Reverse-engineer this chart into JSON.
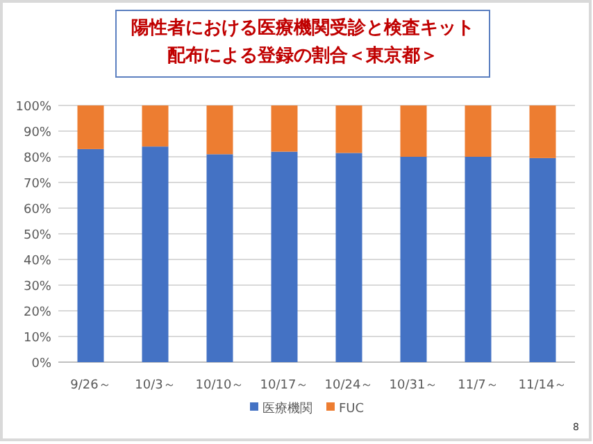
{
  "chart_data": {
    "type": "bar",
    "stacked": true,
    "title": "陽性者における医療機関受診と検査キット配布による登録の割合＜東京都＞",
    "categories": [
      "9/26～",
      "10/3～",
      "10/10～",
      "10/17～",
      "10/24～",
      "10/31～",
      "11/7～",
      "11/14～"
    ],
    "series": [
      {
        "name": "医療機関",
        "color": "#4472c4",
        "values": [
          83,
          84,
          81,
          82,
          81.5,
          80,
          80,
          79.5
        ]
      },
      {
        "name": "FUC",
        "color": "#ed7d31",
        "values": [
          17,
          16,
          19,
          18,
          18.5,
          20,
          20,
          20.5
        ]
      }
    ],
    "ylim": [
      0,
      100
    ],
    "yticks": [
      {
        "value": 0,
        "label": "0%"
      },
      {
        "value": 10,
        "label": "10%"
      },
      {
        "value": 20,
        "label": "20%"
      },
      {
        "value": 30,
        "label": "30%"
      },
      {
        "value": 40,
        "label": "40%"
      },
      {
        "value": 50,
        "label": "50%"
      },
      {
        "value": 60,
        "label": "60%"
      },
      {
        "value": 70,
        "label": "70%"
      },
      {
        "value": 80,
        "label": "80%"
      },
      {
        "value": 90,
        "label": "90%"
      },
      {
        "value": 100,
        "label": "100%"
      }
    ],
    "grid": "y",
    "legend": "bottom",
    "annotations": [
      "8"
    ]
  }
}
